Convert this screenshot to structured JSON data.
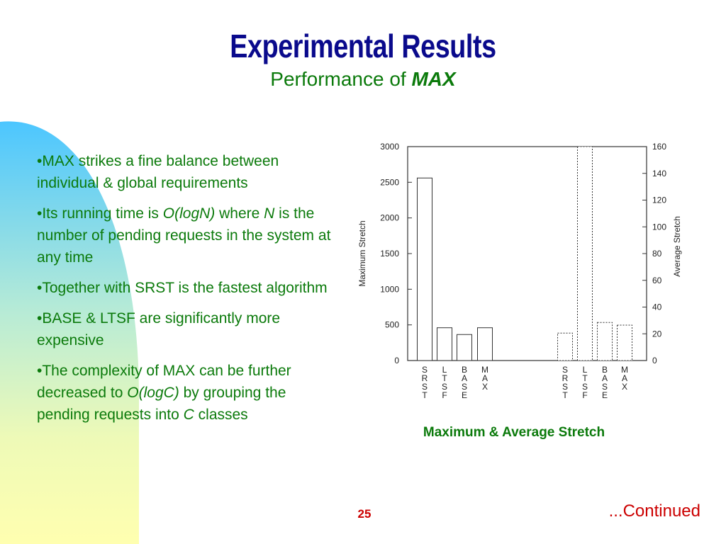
{
  "slide": {
    "title": "Experimental Results",
    "subtitle_prefix": "Performance of",
    "subtitle_emphasis": "MAX",
    "bullets": [
      [
        {
          "t": "•MAX strikes a fine balance between individual & global requirements",
          "i": false
        }
      ],
      [
        {
          "t": "•Its running time is ",
          "i": false
        },
        {
          "t": "O(logN)",
          "i": true
        },
        {
          "t": " where ",
          "i": false
        },
        {
          "t": "N",
          "i": true
        },
        {
          "t": " is the number of pending requests in the system at any time",
          "i": false
        }
      ],
      [
        {
          "t": "•Together with SRST is the fastest algorithm",
          "i": false
        }
      ],
      [
        {
          "t": "•BASE & LTSF are significantly more expensive",
          "i": false
        }
      ],
      [
        {
          "t": "•The complexity of MAX can be further decreased to ",
          "i": false
        },
        {
          "t": "O(logC)",
          "i": true
        },
        {
          "t": " by grouping the pending requests into ",
          "i": false
        },
        {
          "t": "C",
          "i": true
        },
        {
          "t": " classes",
          "i": false
        }
      ]
    ],
    "caption": "Maximum & Average Stretch",
    "page_number": "25",
    "continued": "...Continued",
    "colors": {
      "title": "#0a0a8c",
      "text": "#0b7a0b",
      "accent": "#cc0000"
    }
  },
  "chart_data": {
    "type": "bar",
    "title": "",
    "categories": [
      "SRST",
      "LTSF",
      "BASE",
      "MAX",
      "SRST",
      "LTSF",
      "BASE",
      "MAX"
    ],
    "series": [
      {
        "name": "",
        "axis": "left",
        "values": [
          2560,
          460,
          365,
          460,
          null,
          null,
          null,
          null
        ]
      },
      {
        "name": "",
        "axis": "right",
        "values": [
          null,
          null,
          null,
          null,
          20.5,
          160,
          28.5,
          26.5
        ]
      }
    ],
    "left_axis": {
      "label": "Maximum Stretch",
      "range": [
        0,
        3000
      ],
      "ticks": [
        "0",
        "500",
        "1000",
        "1500",
        "2000",
        "2500",
        "3000"
      ]
    },
    "right_axis": {
      "label": "Average Stretch",
      "range": [
        0,
        160
      ],
      "ticks": [
        "0",
        "20",
        "40",
        "60",
        "80",
        "100",
        "120",
        "140",
        "160"
      ]
    },
    "grid": false,
    "legend": "none"
  }
}
